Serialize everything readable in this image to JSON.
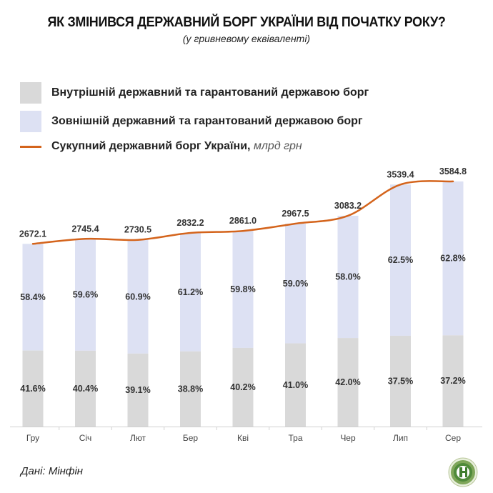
{
  "chart_data": {
    "type": "bar",
    "stacked": true,
    "title": "ЯК ЗМІНИВСЯ ДЕРЖАВНИЙ БОРГ УКРАЇНИ ВІД ПОЧАТКУ РОКУ?",
    "subtitle": "(у гривневому еквіваленті)",
    "xlabel": "",
    "ylabel": "",
    "categories": [
      "Гру",
      "Січ",
      "Лют",
      "Бер",
      "Кві",
      "Тра",
      "Чер",
      "Лип",
      "Сер"
    ],
    "totals": [
      2672.1,
      2745.4,
      2730.5,
      2832.2,
      2861.0,
      2967.5,
      3083.2,
      3539.4,
      3584.8
    ],
    "total_labels": [
      "2672.1",
      "2745.4",
      "2730.5",
      "2832.2",
      "2861.0",
      "2967.5",
      "3083.2",
      "3539.4",
      "3584.8"
    ],
    "series": [
      {
        "name": "Внутрішній державний та гарантований державою борг",
        "color": "#d9d9d9",
        "values_pct": [
          41.6,
          40.4,
          39.1,
          38.8,
          40.2,
          41.0,
          42.0,
          37.5,
          37.2
        ],
        "labels": [
          "41.6%",
          "40.4%",
          "39.1%",
          "38.8%",
          "40.2%",
          "41.0%",
          "42.0%",
          "37.5%",
          "37.2%"
        ]
      },
      {
        "name": "Зовнішній державний та гарантований державою борг",
        "color": "#dde1f3",
        "values_pct": [
          58.4,
          59.6,
          60.9,
          61.2,
          59.8,
          59.0,
          58.0,
          62.5,
          62.8
        ],
        "labels": [
          "58.4%",
          "59.6%",
          "60.9%",
          "61.2%",
          "59.8%",
          "59.0%",
          "58.0%",
          "62.5%",
          "62.8%"
        ]
      }
    ],
    "line": {
      "name": "Сукупний державний борг України,",
      "unit": "млрд грн",
      "color": "#d4641c"
    },
    "ylim": [
      0,
      3700
    ],
    "grid": false,
    "legend_position": "top-left"
  },
  "footer": {
    "source": "Дані: Мінфін"
  }
}
